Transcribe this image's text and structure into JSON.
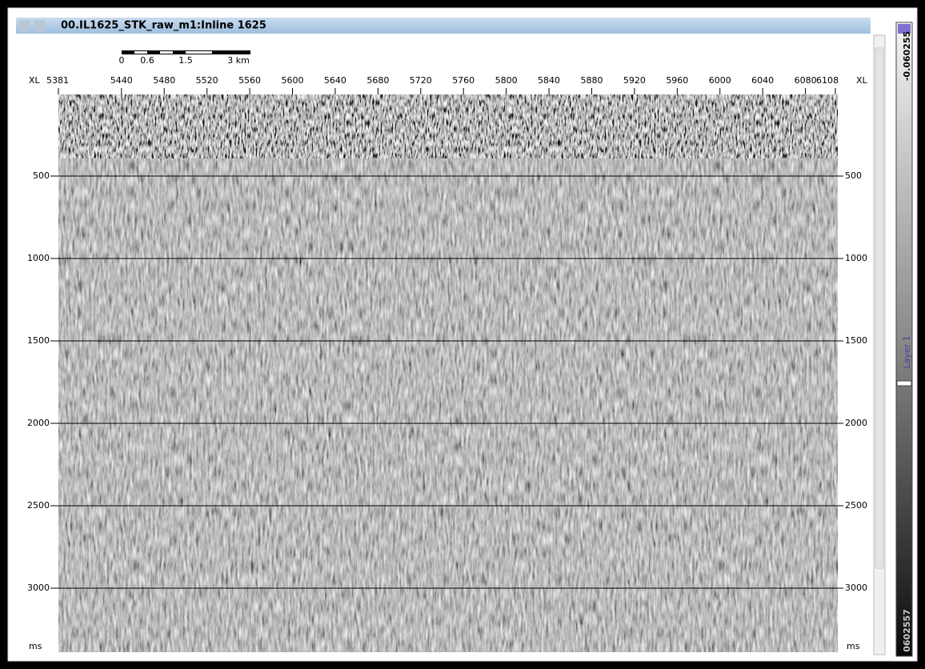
{
  "window": {
    "title": "00.IL1625_STK_raw_m1:Inline 1625"
  },
  "scale_bar": {
    "labels": [
      "0",
      "0.6",
      "1.5",
      "3 km"
    ]
  },
  "x_axis": {
    "unit": "XL",
    "ticks": [
      5381,
      5440,
      5480,
      5520,
      5560,
      5600,
      5640,
      5680,
      5720,
      5760,
      5800,
      5840,
      5880,
      5920,
      5960,
      6000,
      6040,
      6080,
      6108
    ]
  },
  "y_axis": {
    "unit": "ms",
    "ticks": [
      500,
      1000,
      1500,
      2000,
      2500,
      3000
    ]
  },
  "colorbar": {
    "top_label": "-0.060255",
    "layer_label": "Layer 1",
    "bottom_label": "0602557"
  }
}
